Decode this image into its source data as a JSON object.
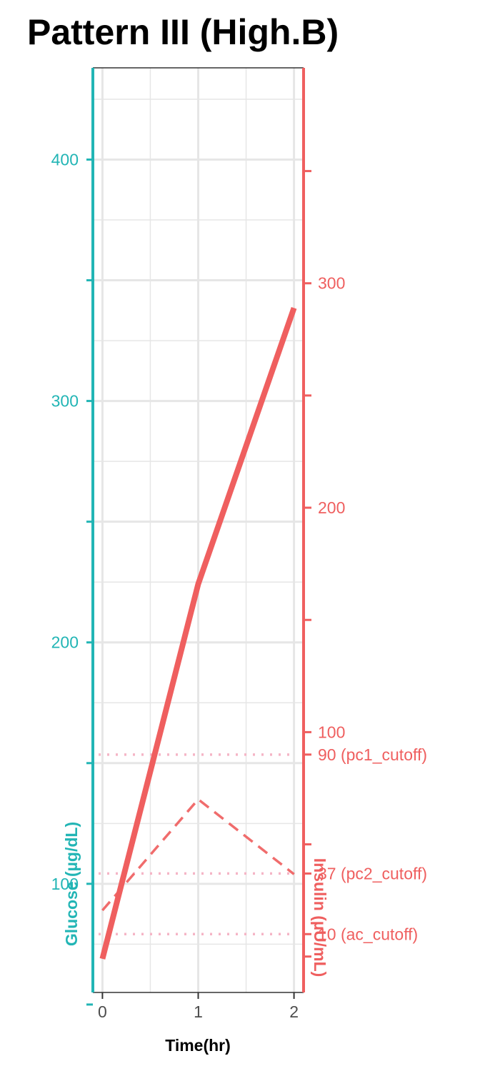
{
  "colors": {
    "glucose": "#22b5b5",
    "insulin": "#ef5f5f",
    "cutoff": "#f5b5c6",
    "grid": "#e6e6e6",
    "panel_border": "#333333"
  },
  "chart_data": {
    "type": "line",
    "title": "Pattern III (High.B)",
    "xlabel": "Time(hr)",
    "x": [
      0,
      1,
      2
    ],
    "xlim": [
      -0.1,
      2.1
    ],
    "x_ticks": [
      0,
      1,
      2
    ],
    "grid": true,
    "y_left": {
      "label": "Glucose (µg/dL)",
      "range": [
        55,
        438
      ],
      "labeled_ticks": [
        100,
        200,
        300,
        400
      ],
      "minor_ticks": [
        50,
        150,
        250,
        350
      ]
    },
    "y_right": {
      "label": "Insulin (µU/mL)",
      "range": [
        -16,
        396
      ],
      "labeled_ticks": [
        {
          "value": 300,
          "label": "300"
        },
        {
          "value": 200,
          "label": "200"
        },
        {
          "value": 100,
          "label": "100"
        },
        {
          "value": 90,
          "label": "90 (pc1_cutoff)"
        },
        {
          "value": 37,
          "label": "37 (pc2_cutoff)"
        },
        {
          "value": 10,
          "label": "10 (ac_cutoff)"
        }
      ],
      "minor_ticks": [
        0,
        50,
        150,
        250,
        350
      ]
    },
    "series": [
      {
        "axis": "left",
        "style": "dashed",
        "values": [
          89,
          135,
          104
        ]
      },
      {
        "axis": "right",
        "style": "solid",
        "values": [
          -1,
          166,
          289
        ]
      }
    ],
    "reference_lines": [
      {
        "axis": "right",
        "value": 90,
        "style": "dotted"
      },
      {
        "axis": "right",
        "value": 37,
        "style": "dotted"
      },
      {
        "axis": "right",
        "value": 10,
        "style": "dotted"
      }
    ]
  }
}
